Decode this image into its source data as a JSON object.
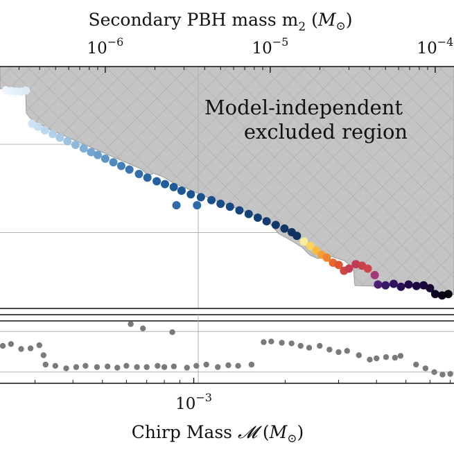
{
  "chart_data": [
    {
      "type": "scatter",
      "panel": "upper",
      "title": "Secondary PBH mass m₂ (M☉)",
      "top_axis": {
        "label_main": "Secondary PBH mass m",
        "label_sub": "2",
        "label_unit_open": " (",
        "label_unit_M": "M",
        "label_unit_sun": "⊙",
        "label_unit_close": ")",
        "scale": "log",
        "ticks": [
          {
            "value": 1e-06,
            "base": "10",
            "exp": "−6"
          },
          {
            "value": 1e-05,
            "base": "10",
            "exp": "−5"
          },
          {
            "value": 0.0001,
            "base": "10",
            "exp": "−4"
          }
        ],
        "xlim": [
          2.3e-07,
          0.00013
        ]
      },
      "annotation": [
        "Model-independent",
        "excluded region"
      ],
      "excluded_region_colors": {
        "fill": "#c4c4c4",
        "hatch": "#ababab",
        "edge": "#9a9a9a"
      },
      "gridlines_y_fraction": [
        0.155,
        0.52,
        0.86
      ],
      "points": [
        {
          "m2": 2.5e-07,
          "y": 0.02,
          "color": "#eef5fb"
        },
        {
          "m2": 2.7e-07,
          "y": 0.025,
          "color": "#e9f2fa"
        },
        {
          "m2": 2.9e-07,
          "y": 0.028,
          "color": "#e4eff9"
        },
        {
          "m2": 3.1e-07,
          "y": 0.03,
          "color": "#e1edf8"
        },
        {
          "m2": 3.3e-07,
          "y": 0.022,
          "color": "#deebf7"
        },
        {
          "m2": 3.6e-07,
          "y": 0.25,
          "color": "#cfe2f3"
        },
        {
          "m2": 3.9e-07,
          "y": 0.27,
          "color": "#c9def1"
        },
        {
          "m2": 4.3e-07,
          "y": 0.295,
          "color": "#bdd7ee"
        },
        {
          "m2": 4.8e-07,
          "y": 0.32,
          "color": "#b3d1eb"
        },
        {
          "m2": 5.3e-07,
          "y": 0.345,
          "color": "#a8c9e6"
        },
        {
          "m2": 5.9e-07,
          "y": 0.37,
          "color": "#9cc1e2"
        },
        {
          "m2": 6.6e-07,
          "y": 0.395,
          "color": "#8fb8dd"
        },
        {
          "m2": 7.4e-07,
          "y": 0.42,
          "color": "#82afd8"
        },
        {
          "m2": 8.2e-07,
          "y": 0.445,
          "color": "#75a6d2"
        },
        {
          "m2": 9e-07,
          "y": 0.465,
          "color": "#6b9ecd"
        },
        {
          "m2": 1e-06,
          "y": 0.49,
          "color": "#5d94c6"
        },
        {
          "m2": 1.12e-06,
          "y": 0.515,
          "color": "#5089bf"
        },
        {
          "m2": 1.25e-06,
          "y": 0.54,
          "color": "#4780b9"
        },
        {
          "m2": 1.4e-06,
          "y": 0.565,
          "color": "#3b76b2"
        },
        {
          "m2": 1.6e-06,
          "y": 0.595,
          "color": "#326da9"
        },
        {
          "m2": 1.8e-06,
          "y": 0.62,
          "color": "#2b66a3"
        },
        {
          "m2": 2.05e-06,
          "y": 0.645,
          "color": "#2561a0"
        },
        {
          "m2": 2.3e-06,
          "y": 0.665,
          "color": "#215c9b"
        },
        {
          "m2": 2.6e-06,
          "y": 0.685,
          "color": "#1f5a98"
        },
        {
          "m2": 2.9e-06,
          "y": 0.71,
          "color": "#1d5794"
        },
        {
          "m2": 2.7e-06,
          "y": 0.81,
          "color": "#2c6aa8"
        },
        {
          "m2": 3.6e-06,
          "y": 0.81,
          "color": "#2c6aa8"
        },
        {
          "m2": 3.3e-06,
          "y": 0.735,
          "color": "#1b5491"
        },
        {
          "m2": 3.8e-06,
          "y": 0.755,
          "color": "#1a528f"
        },
        {
          "m2": 4.4e-06,
          "y": 0.775,
          "color": "#194f8b"
        },
        {
          "m2": 5e-06,
          "y": 0.8,
          "color": "#184c87"
        },
        {
          "m2": 5.7e-06,
          "y": 0.82,
          "color": "#174983"
        },
        {
          "m2": 6.5e-06,
          "y": 0.845,
          "color": "#15457e"
        },
        {
          "m2": 7.4e-06,
          "y": 0.87,
          "color": "#144279"
        },
        {
          "m2": 8.4e-06,
          "y": 0.895,
          "color": "#133f74"
        },
        {
          "m2": 9.5e-06,
          "y": 0.92,
          "color": "#123c70"
        },
        {
          "m2": 1.08e-05,
          "y": 0.945,
          "color": "#11396b"
        },
        {
          "m2": 1.22e-05,
          "y": 0.97,
          "color": "#103667"
        },
        {
          "m2": 1.35e-05,
          "y": 0.995,
          "color": "#0f3463"
        },
        {
          "m2": 1.45e-05,
          "y": 1.02,
          "color": "#0e3160"
        },
        {
          "m2": 1.6e-05,
          "y": 1.06,
          "color": "#f6ec9a"
        },
        {
          "m2": 1.75e-05,
          "y": 1.09,
          "color": "#f9d35e"
        },
        {
          "m2": 1.9e-05,
          "y": 1.12,
          "color": "#f8b941"
        },
        {
          "m2": 2.05e-05,
          "y": 1.15,
          "color": "#f59d35"
        },
        {
          "m2": 2.2e-05,
          "y": 1.17,
          "color": "#f0832f"
        },
        {
          "m2": 2.4e-05,
          "y": 1.205,
          "color": "#e8672f"
        },
        {
          "m2": 2.6e-05,
          "y": 1.22,
          "color": "#de5534"
        },
        {
          "m2": 2.8e-05,
          "y": 1.26,
          "color": "#d04543"
        },
        {
          "m2": 3e-05,
          "y": 1.245,
          "color": "#c63d50"
        },
        {
          "m2": 3.3e-05,
          "y": 1.215,
          "color": "#c03a55"
        },
        {
          "m2": 3.6e-05,
          "y": 1.225,
          "color": "#c9404a"
        },
        {
          "m2": 3.9e-05,
          "y": 1.245,
          "color": "#d04648"
        },
        {
          "m2": 4.3e-05,
          "y": 1.29,
          "color": "#a53773"
        },
        {
          "m2": 4.5e-05,
          "y": 1.355,
          "color": "#4a1f74"
        },
        {
          "m2": 5e-05,
          "y": 1.36,
          "color": "#3b1769"
        },
        {
          "m2": 5.6e-05,
          "y": 1.35,
          "color": "#32125f"
        },
        {
          "m2": 6.2e-05,
          "y": 1.37,
          "color": "#2a0e55"
        },
        {
          "m2": 6.9e-05,
          "y": 1.355,
          "color": "#22094b"
        },
        {
          "m2": 7.7e-05,
          "y": 1.365,
          "color": "#1c0742"
        },
        {
          "m2": 8.5e-05,
          "y": 1.36,
          "color": "#18063c"
        },
        {
          "m2": 9.3e-05,
          "y": 1.38,
          "color": "#130430"
        },
        {
          "m2": 0.0001,
          "y": 1.42,
          "color": "#0c0320"
        },
        {
          "m2": 0.00011,
          "y": 1.43,
          "color": "#070214"
        },
        {
          "m2": 0.00012,
          "y": 1.42,
          "color": "#04010c"
        }
      ]
    },
    {
      "type": "scatter",
      "panel": "lower",
      "xlabel_main": "Chirp Mass ",
      "xlabel_symbol": "𝓜",
      "xlabel_unit_open": " (",
      "xlabel_unit_M": "M",
      "xlabel_unit_sun": "⊙",
      "xlabel_unit_close": ")",
      "scale": "log",
      "ticks": [
        {
          "value": 0.001,
          "base": "10",
          "exp": "−3"
        }
      ],
      "xlim": [
        0.00023,
        0.0072
      ],
      "gridlines_y_fraction": [
        0.17,
        0.82
      ],
      "point_color": "#7a7a7a",
      "points": [
        {
          "mc": 0.000235,
          "y": 0.4
        },
        {
          "mc": 0.00025,
          "y": 0.37
        },
        {
          "mc": 0.00027,
          "y": 0.45
        },
        {
          "mc": 0.00029,
          "y": 0.44
        },
        {
          "mc": 0.00031,
          "y": 0.39
        },
        {
          "mc": 0.00032,
          "y": 0.55
        },
        {
          "mc": 0.000325,
          "y": 0.7
        },
        {
          "mc": 0.00035,
          "y": 0.72
        },
        {
          "mc": 0.00038,
          "y": 0.76
        },
        {
          "mc": 0.00041,
          "y": 0.74
        },
        {
          "mc": 0.00044,
          "y": 0.72
        },
        {
          "mc": 0.00048,
          "y": 0.74
        },
        {
          "mc": 0.00052,
          "y": 0.73
        },
        {
          "mc": 0.00056,
          "y": 0.75
        },
        {
          "mc": 0.0006,
          "y": 0.72
        },
        {
          "mc": 0.00065,
          "y": 0.74
        },
        {
          "mc": 0.00062,
          "y": 0.05
        },
        {
          "mc": 0.00068,
          "y": 0.12
        },
        {
          "mc": 0.0007,
          "y": 0.74
        },
        {
          "mc": 0.00076,
          "y": 0.72
        },
        {
          "mc": 0.0008,
          "y": 0.74
        },
        {
          "mc": 0.00086,
          "y": 0.73
        },
        {
          "mc": 0.00085,
          "y": 0.18
        },
        {
          "mc": 0.00095,
          "y": 0.75
        },
        {
          "mc": 0.00102,
          "y": 0.72
        },
        {
          "mc": 0.0011,
          "y": 0.7
        },
        {
          "mc": 0.0012,
          "y": 0.74
        },
        {
          "mc": 0.0013,
          "y": 0.71
        },
        {
          "mc": 0.0014,
          "y": 0.72
        },
        {
          "mc": 0.00155,
          "y": 0.7
        },
        {
          "mc": 0.0017,
          "y": 0.34
        },
        {
          "mc": 0.0018,
          "y": 0.33
        },
        {
          "mc": 0.00195,
          "y": 0.35
        },
        {
          "mc": 0.0021,
          "y": 0.36
        },
        {
          "mc": 0.00225,
          "y": 0.4
        },
        {
          "mc": 0.0024,
          "y": 0.43
        },
        {
          "mc": 0.0026,
          "y": 0.4
        },
        {
          "mc": 0.0028,
          "y": 0.46
        },
        {
          "mc": 0.003,
          "y": 0.5
        },
        {
          "mc": 0.0032,
          "y": 0.48
        },
        {
          "mc": 0.0035,
          "y": 0.55
        },
        {
          "mc": 0.0038,
          "y": 0.62
        },
        {
          "mc": 0.004,
          "y": 0.6
        },
        {
          "mc": 0.0043,
          "y": 0.58
        },
        {
          "mc": 0.0046,
          "y": 0.59
        },
        {
          "mc": 0.0048,
          "y": 0.56
        },
        {
          "mc": 0.0054,
          "y": 0.7
        },
        {
          "mc": 0.0058,
          "y": 0.76
        },
        {
          "mc": 0.0062,
          "y": 0.82
        },
        {
          "mc": 0.0066,
          "y": 0.86
        },
        {
          "mc": 0.007,
          "y": 0.85
        }
      ]
    }
  ]
}
